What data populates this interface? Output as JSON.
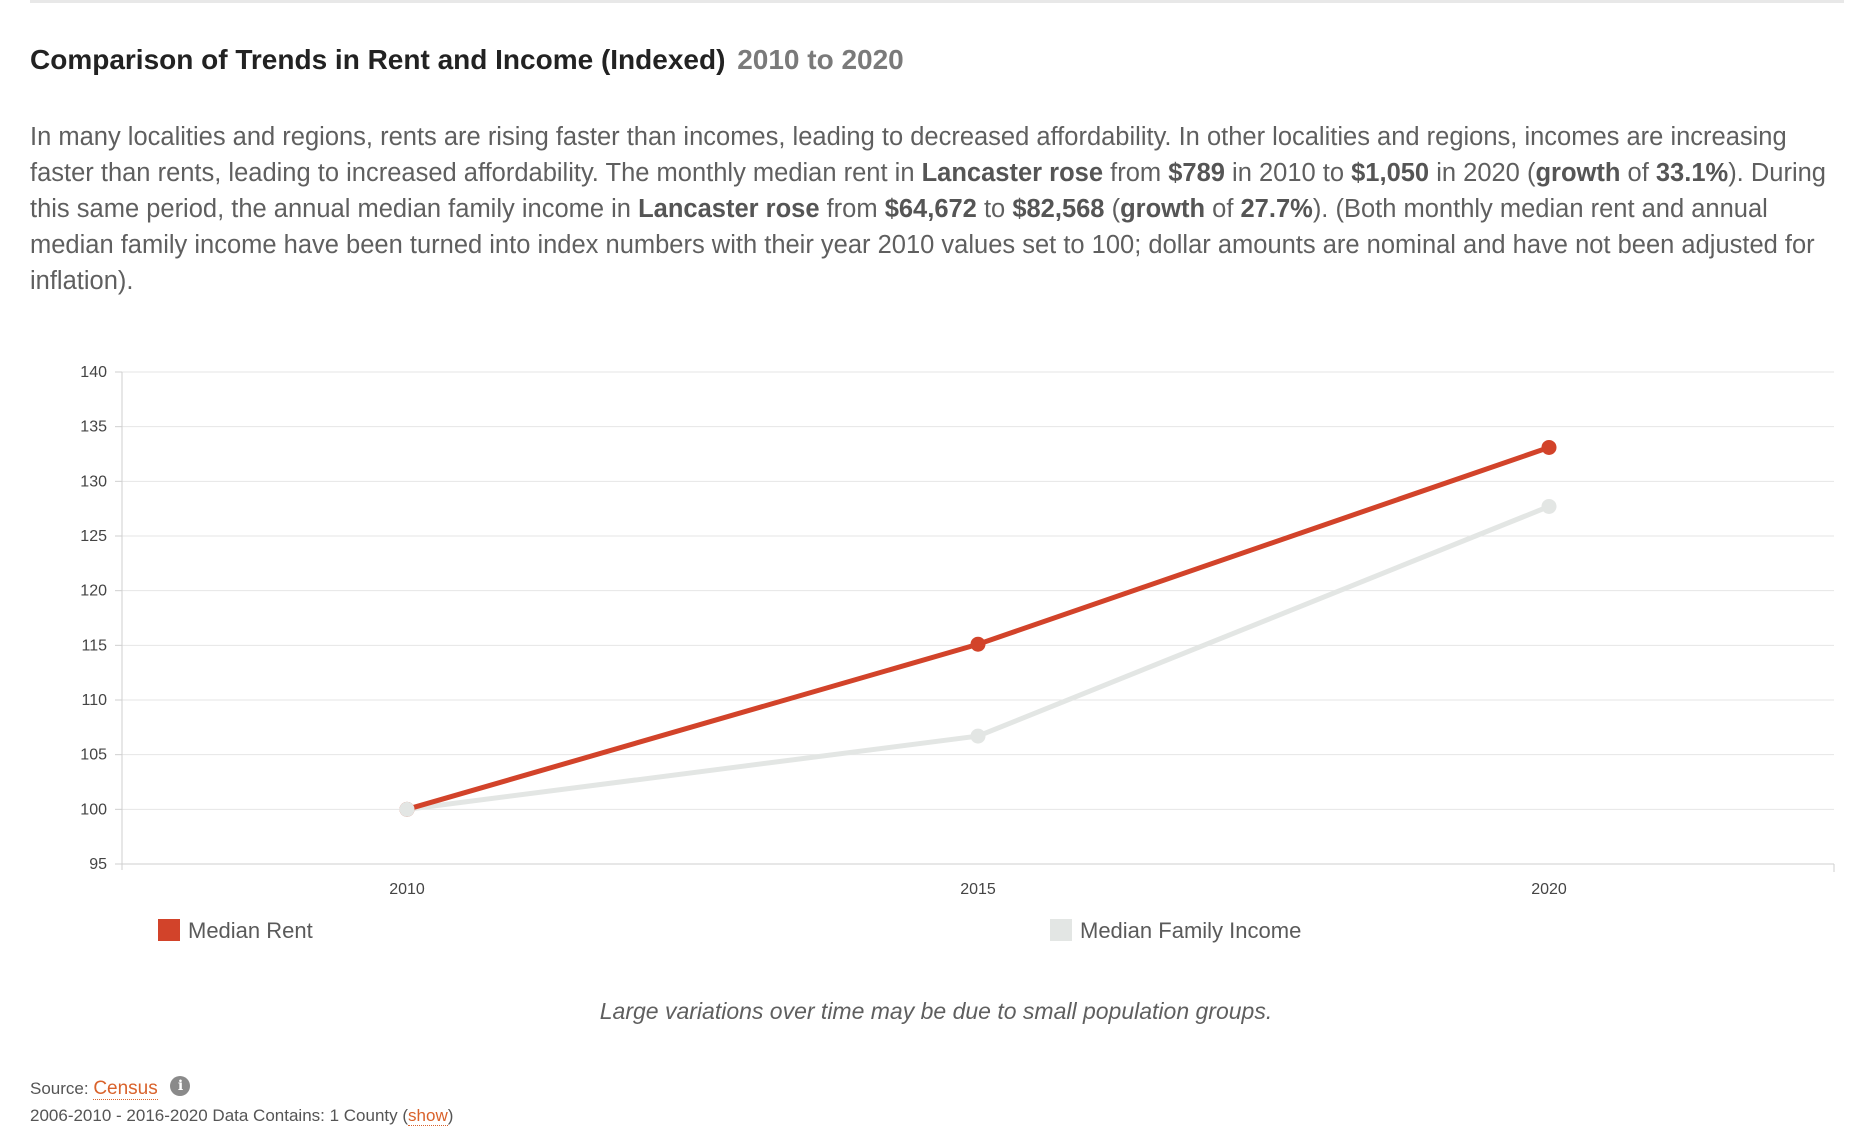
{
  "header": {
    "title": "Comparison of Trends in Rent and Income (Indexed)",
    "range": "2010 to 2020"
  },
  "summary": {
    "p1": "In many localities and regions, rents are rising faster than incomes, leading to decreased affordability. In other localities and regions, incomes are increasing faster than rents, leading to increased affordability. The monthly median rent in ",
    "place1": "Lancaster rose",
    "p2": " from ",
    "rent_start": "$789",
    "p3": " in 2010 to ",
    "rent_end": "$1,050",
    "p4": " in 2020 (",
    "growth_word1": "growth",
    "p5": " of ",
    "rent_growth": "33.1%",
    "p6": "). During this same period, the annual median family income in ",
    "place2": "Lancaster rose",
    "p7": " from ",
    "income_start": "$64,672",
    "p8": " to ",
    "income_end": "$82,568",
    "p9": " (",
    "growth_word2": "growth",
    "p10": " of ",
    "income_growth": "27.7%",
    "p11": "). (Both monthly median rent and annual median family income have been turned into index numbers with their year 2010 values set to 100; dollar amounts are nominal and have not been adjusted for inflation)."
  },
  "chart_data": {
    "type": "line",
    "title": "Comparison of Trends in Rent and Income (Indexed)",
    "xlabel": "",
    "ylabel": "",
    "x": [
      "2010",
      "2015",
      "2020"
    ],
    "ylim": [
      95,
      140
    ],
    "yticks": [
      95,
      100,
      105,
      110,
      115,
      120,
      125,
      130,
      135,
      140
    ],
    "grid": true,
    "legend_position": "bottom",
    "series": [
      {
        "name": "Median Rent",
        "color": "#d2432a",
        "values": [
          100,
          115.1,
          133.1
        ]
      },
      {
        "name": "Median Family Income",
        "color": "#e3e6e4",
        "values": [
          100,
          106.7,
          127.7
        ]
      }
    ]
  },
  "note": "Large variations over time may be due to small population groups.",
  "footer": {
    "source_label": "Source:",
    "source_link": "Census",
    "info_icon_glyph": "i",
    "coverage_text": "2006-2010 - 2016-2020 Data Contains: 1 County (",
    "show_link": "show",
    "coverage_close": ")"
  },
  "colors": {
    "rent": "#d2432a",
    "income": "#e3e6e4",
    "link": "#d9622b"
  }
}
